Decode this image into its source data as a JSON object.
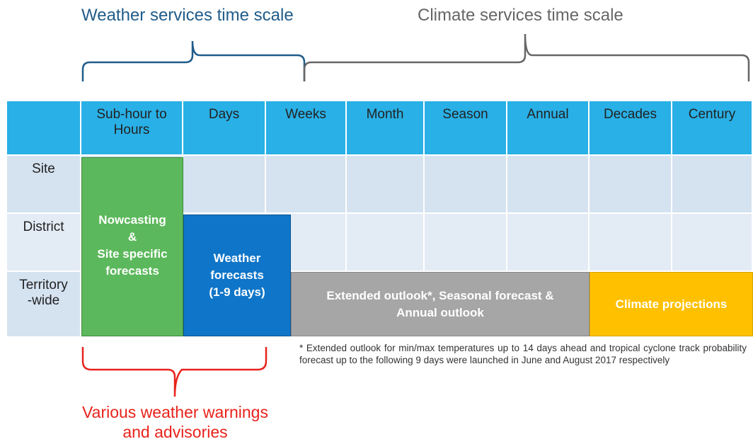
{
  "titles": {
    "weather": "Weather services time scale",
    "climate": "Climate services time scale"
  },
  "columns": [
    [
      "Sub-hour to",
      "Hours"
    ],
    [
      "Days"
    ],
    [
      "Weeks"
    ],
    [
      "Month"
    ],
    [
      "Season"
    ],
    [
      "Annual"
    ],
    [
      "Decades"
    ],
    [
      "Century"
    ]
  ],
  "rows": [
    [
      "Site"
    ],
    [
      "District"
    ],
    [
      "Territory",
      "-wide"
    ]
  ],
  "blocks": [
    {
      "lines": [
        "Nowcasting",
        "&",
        "Site specific",
        "forecasts"
      ]
    },
    {
      "lines": [
        "Weather",
        "forecasts",
        "(1-9 days)"
      ]
    },
    {
      "lines": [
        "Extended outlook*, Seasonal forecast &",
        "Annual outlook"
      ]
    },
    {
      "lines": [
        "Climate projections"
      ]
    }
  ],
  "footnote": "* Extended outlook for min/max temperatures up to 14 days ahead and tropical cyclone track probability forecast up to the following 9 days were launched in June and August 2017 respectively",
  "warnings": [
    "Various weather warnings",
    "and advisories"
  ]
}
